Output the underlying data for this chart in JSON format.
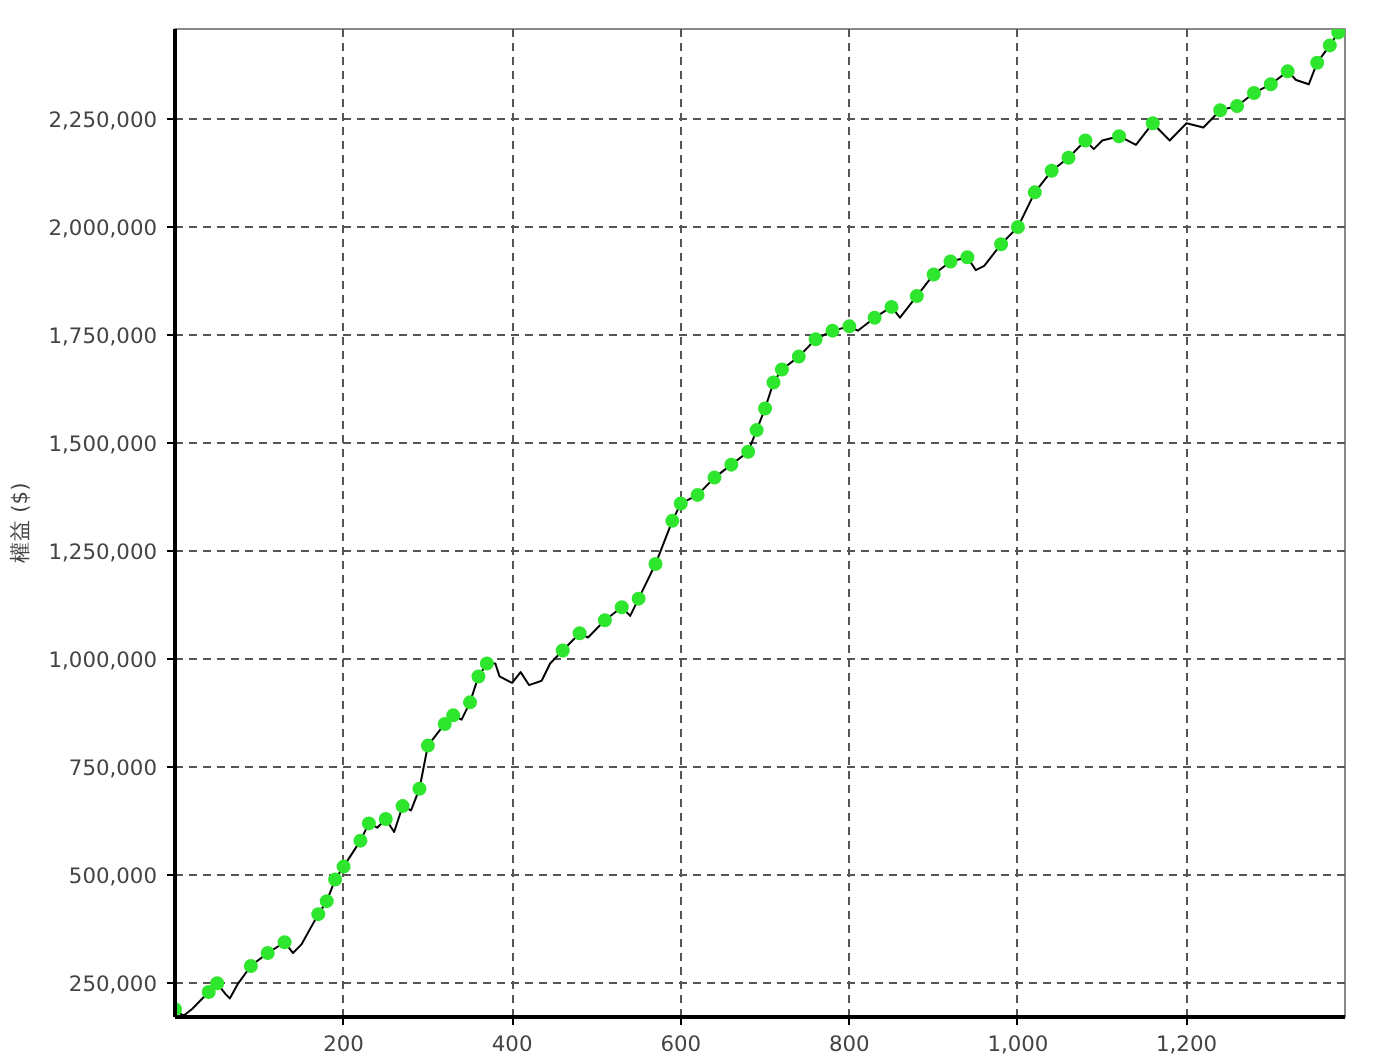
{
  "chart_data": {
    "type": "line",
    "ylabel": "權益 ($)",
    "xlim": [
      0,
      1388
    ],
    "ylim": [
      172000,
      2458000
    ],
    "xticks": [
      200,
      400,
      600,
      800,
      {
        "value": 1000,
        "label": "1,000"
      },
      {
        "value": 1200,
        "label": "1,200"
      }
    ],
    "yticks": [
      {
        "value": 250000,
        "label": "250,000"
      },
      {
        "value": 500000,
        "label": "500,000"
      },
      {
        "value": 750000,
        "label": "750,000"
      },
      {
        "value": 1000000,
        "label": "1,000,000"
      },
      {
        "value": 1250000,
        "label": "1,250,000"
      },
      {
        "value": 1500000,
        "label": "1,500,000"
      },
      {
        "value": 1750000,
        "label": "1,750,000"
      },
      {
        "value": 2000000,
        "label": "2,000,000"
      },
      {
        "value": 2250000,
        "label": "2,250,000"
      }
    ],
    "grid": true,
    "series": [
      {
        "color": "#000000",
        "marker": "none",
        "x": [
          0,
          10,
          20,
          40,
          50,
          60,
          65,
          75,
          90,
          110,
          130,
          140,
          150,
          170,
          180,
          190,
          200,
          220,
          230,
          240,
          250,
          260,
          270,
          280,
          290,
          300,
          320,
          330,
          340,
          350,
          360,
          370,
          380,
          385,
          400,
          410,
          420,
          435,
          445,
          460,
          480,
          490,
          510,
          530,
          540,
          550,
          570,
          590,
          600,
          620,
          640,
          660,
          680,
          690,
          700,
          710,
          720,
          740,
          760,
          780,
          800,
          810,
          830,
          850,
          860,
          880,
          900,
          920,
          940,
          950,
          960,
          980,
          1000,
          1020,
          1040,
          1060,
          1080,
          1090,
          1100,
          1120,
          1140,
          1160,
          1180,
          1200,
          1220,
          1240,
          1260,
          1280,
          1300,
          1320,
          1330,
          1345,
          1355,
          1370,
          1380
        ],
        "values": [
          190000,
          175000,
          190000,
          230000,
          250000,
          225000,
          215000,
          250000,
          290000,
          320000,
          345000,
          320000,
          340000,
          410000,
          440000,
          490000,
          520000,
          580000,
          620000,
          610000,
          630000,
          600000,
          660000,
          650000,
          700000,
          800000,
          850000,
          870000,
          860000,
          900000,
          960000,
          990000,
          990000,
          960000,
          945000,
          970000,
          940000,
          950000,
          990000,
          1020000,
          1060000,
          1050000,
          1090000,
          1120000,
          1100000,
          1140000,
          1220000,
          1320000,
          1360000,
          1380000,
          1420000,
          1450000,
          1480000,
          1530000,
          1580000,
          1640000,
          1670000,
          1700000,
          1740000,
          1760000,
          1770000,
          1760000,
          1790000,
          1815000,
          1790000,
          1840000,
          1890000,
          1920000,
          1930000,
          1900000,
          1910000,
          1960000,
          2000000,
          2080000,
          2130000,
          2160000,
          2200000,
          2180000,
          2200000,
          2210000,
          2190000,
          2240000,
          2200000,
          2240000,
          2230000,
          2270000,
          2280000,
          2310000,
          2330000,
          2360000,
          2340000,
          2330000,
          2380000,
          2420000,
          2450000
        ]
      },
      {
        "type": "scatter",
        "color": "#2ee62e",
        "marker": "circle",
        "x": [
          0,
          40,
          50,
          90,
          110,
          130,
          170,
          180,
          190,
          200,
          220,
          230,
          250,
          270,
          290,
          300,
          320,
          330,
          350,
          360,
          370,
          460,
          480,
          510,
          530,
          550,
          570,
          590,
          600,
          620,
          640,
          660,
          680,
          690,
          700,
          710,
          720,
          740,
          760,
          780,
          800,
          830,
          850,
          880,
          900,
          920,
          940,
          980,
          1000,
          1020,
          1040,
          1060,
          1080,
          1120,
          1160,
          1240,
          1260,
          1280,
          1300,
          1320,
          1355,
          1370,
          1380
        ],
        "values": [
          190000,
          230000,
          250000,
          290000,
          320000,
          345000,
          410000,
          440000,
          490000,
          520000,
          580000,
          620000,
          630000,
          660000,
          700000,
          800000,
          850000,
          870000,
          900000,
          960000,
          990000,
          1020000,
          1060000,
          1090000,
          1120000,
          1140000,
          1220000,
          1320000,
          1360000,
          1380000,
          1420000,
          1450000,
          1480000,
          1530000,
          1580000,
          1640000,
          1670000,
          1700000,
          1740000,
          1760000,
          1770000,
          1790000,
          1815000,
          1840000,
          1890000,
          1920000,
          1930000,
          1960000,
          2000000,
          2080000,
          2130000,
          2160000,
          2200000,
          2210000,
          2240000,
          2270000,
          2280000,
          2310000,
          2330000,
          2360000,
          2380000,
          2420000,
          2450000
        ]
      }
    ]
  }
}
